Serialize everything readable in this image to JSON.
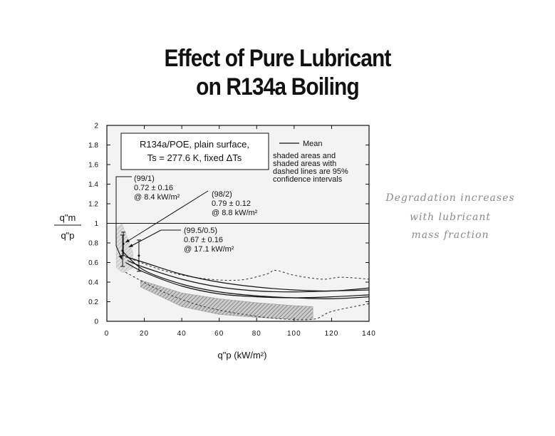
{
  "title_lines": [
    "Effect of Pure Lubricant",
    "on R134a Boiling"
  ],
  "side_note_lines": [
    "Degradation increases",
    "with lubricant",
    "mass fraction"
  ],
  "chart_data": {
    "type": "line",
    "xlabel": "q\"p (kW/m²)",
    "ylabel_num": "q\"m",
    "ylabel_den": "q\"p",
    "xlim": [
      0,
      140
    ],
    "ylim": [
      0,
      2
    ],
    "x_ticks": [
      "0",
      "20",
      "40",
      "60",
      "80",
      "100",
      "120",
      "140"
    ],
    "y_ticks": [
      "0",
      "0.2",
      "0.4",
      "0.6",
      "0.8",
      "1",
      "1.2",
      "1.4",
      "1.6",
      "1.8",
      "2"
    ],
    "reference_line": 1,
    "info_box": [
      "R134a/POE, plain surface,",
      "Ts = 277.6 K, fixed ΔTs"
    ],
    "legend": {
      "mean_label": "Mean",
      "note": [
        "shaded areas and",
        "shaded areas with",
        "dashed lines are 95%",
        "confidence intervals"
      ]
    },
    "annotations": [
      {
        "lines": [
          "(99/1)",
          "0.72 ± 0.16",
          "@ 8.4 kW/m²"
        ]
      },
      {
        "lines": [
          "(98/2)",
          "0.79 ± 0.12",
          "@ 8.8 kW/m²"
        ]
      },
      {
        "lines": [
          "(99.5/0.5)",
          "0.67 ± 0.16",
          "@ 17.1 kW/m²"
        ]
      }
    ],
    "series": [
      {
        "x": [
          10,
          20,
          40,
          60,
          80,
          100,
          120,
          140
        ],
        "y": [
          0.66,
          0.6,
          0.48,
          0.4,
          0.35,
          0.32,
          0.31,
          0.34
        ]
      },
      {
        "x": [
          11,
          20,
          40,
          60,
          80,
          100,
          120,
          140
        ],
        "y": [
          0.62,
          0.55,
          0.43,
          0.35,
          0.31,
          0.3,
          0.31,
          0.32
        ]
      },
      {
        "x": [
          10,
          20,
          40,
          60,
          80,
          100,
          120,
          140
        ],
        "y": [
          0.6,
          0.5,
          0.36,
          0.28,
          0.25,
          0.24,
          0.25,
          0.27
        ]
      },
      {
        "x": [
          8,
          20,
          40,
          60,
          80,
          100,
          120,
          140
        ],
        "y": [
          0.72,
          0.52,
          0.38,
          0.3,
          0.26,
          0.24,
          0.23,
          0.25
        ]
      }
    ],
    "error_bars": [
      {
        "x": 8.4,
        "y": 0.72,
        "err": 0.16
      },
      {
        "x": 8.8,
        "y": 0.79,
        "err": 0.12
      },
      {
        "x": 17.1,
        "y": 0.67,
        "err": 0.16
      }
    ],
    "shaded_bands": [
      {
        "x": [
          18,
          40,
          60,
          80,
          100,
          110
        ],
        "upper": [
          0.42,
          0.29,
          0.23,
          0.19,
          0.16,
          0.15
        ],
        "lower": [
          0.35,
          0.15,
          0.07,
          0.04,
          0.02,
          0.02
        ]
      },
      {
        "x": [
          5,
          8,
          10,
          14
        ],
        "upper": [
          0.95,
          1.0,
          0.9,
          0.7
        ],
        "lower": [
          0.55,
          0.5,
          0.5,
          0.55
        ]
      }
    ],
    "dashed_bounds": [
      {
        "x": [
          10,
          30,
          50,
          70,
          85,
          90,
          100,
          115,
          125,
          140
        ],
        "y": [
          0.66,
          0.52,
          0.44,
          0.42,
          0.48,
          0.52,
          0.47,
          0.43,
          0.45,
          0.43
        ]
      },
      {
        "x": [
          10,
          30,
          50,
          70,
          90,
          110,
          120,
          140
        ],
        "y": [
          0.5,
          0.3,
          0.16,
          0.08,
          0.03,
          0.02,
          0.1,
          0.18
        ]
      }
    ]
  }
}
